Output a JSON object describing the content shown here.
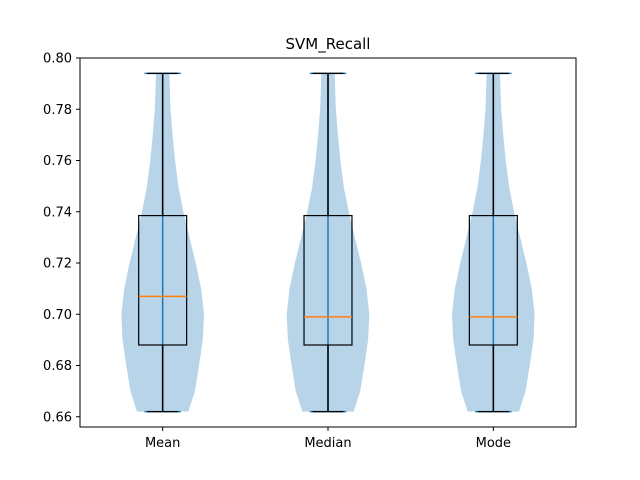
{
  "chart_data": {
    "type": "violin",
    "title": "SVM_Recall",
    "xlabel": "",
    "ylabel": "",
    "ylim": [
      0.656,
      0.8
    ],
    "yticks": [
      "0.66",
      "0.68",
      "0.70",
      "0.72",
      "0.74",
      "0.76",
      "0.78",
      "0.80"
    ],
    "categories": [
      "Mean",
      "Median",
      "Mode"
    ],
    "grid": false,
    "colors": {
      "violin_fill": "#b8d4e8",
      "violin_line": "#1f77b4",
      "box": "#000000",
      "median": "#ff7f0e"
    },
    "series": [
      {
        "min": 0.662,
        "q1": 0.688,
        "median": 0.707,
        "q3": 0.7385,
        "max": 0.794,
        "density": [
          [
            0.662,
            0.62
          ],
          [
            0.67,
            0.78
          ],
          [
            0.68,
            0.88
          ],
          [
            0.69,
            0.97
          ],
          [
            0.7,
            1.0
          ],
          [
            0.71,
            0.93
          ],
          [
            0.72,
            0.8
          ],
          [
            0.73,
            0.65
          ],
          [
            0.74,
            0.5
          ],
          [
            0.75,
            0.38
          ],
          [
            0.76,
            0.3
          ],
          [
            0.77,
            0.24
          ],
          [
            0.78,
            0.19
          ],
          [
            0.794,
            0.16
          ]
        ]
      },
      {
        "min": 0.662,
        "q1": 0.688,
        "median": 0.699,
        "q3": 0.7385,
        "max": 0.794,
        "density": [
          [
            0.662,
            0.62
          ],
          [
            0.67,
            0.78
          ],
          [
            0.68,
            0.88
          ],
          [
            0.69,
            0.97
          ],
          [
            0.7,
            1.0
          ],
          [
            0.71,
            0.93
          ],
          [
            0.72,
            0.8
          ],
          [
            0.73,
            0.65
          ],
          [
            0.74,
            0.5
          ],
          [
            0.75,
            0.38
          ],
          [
            0.76,
            0.3
          ],
          [
            0.77,
            0.24
          ],
          [
            0.78,
            0.19
          ],
          [
            0.794,
            0.16
          ]
        ]
      },
      {
        "min": 0.662,
        "q1": 0.688,
        "median": 0.699,
        "q3": 0.7385,
        "max": 0.794,
        "density": [
          [
            0.662,
            0.62
          ],
          [
            0.67,
            0.78
          ],
          [
            0.68,
            0.88
          ],
          [
            0.69,
            0.97
          ],
          [
            0.7,
            1.0
          ],
          [
            0.71,
            0.93
          ],
          [
            0.72,
            0.8
          ],
          [
            0.73,
            0.65
          ],
          [
            0.74,
            0.5
          ],
          [
            0.75,
            0.38
          ],
          [
            0.76,
            0.3
          ],
          [
            0.77,
            0.24
          ],
          [
            0.78,
            0.19
          ],
          [
            0.794,
            0.16
          ]
        ]
      }
    ]
  }
}
